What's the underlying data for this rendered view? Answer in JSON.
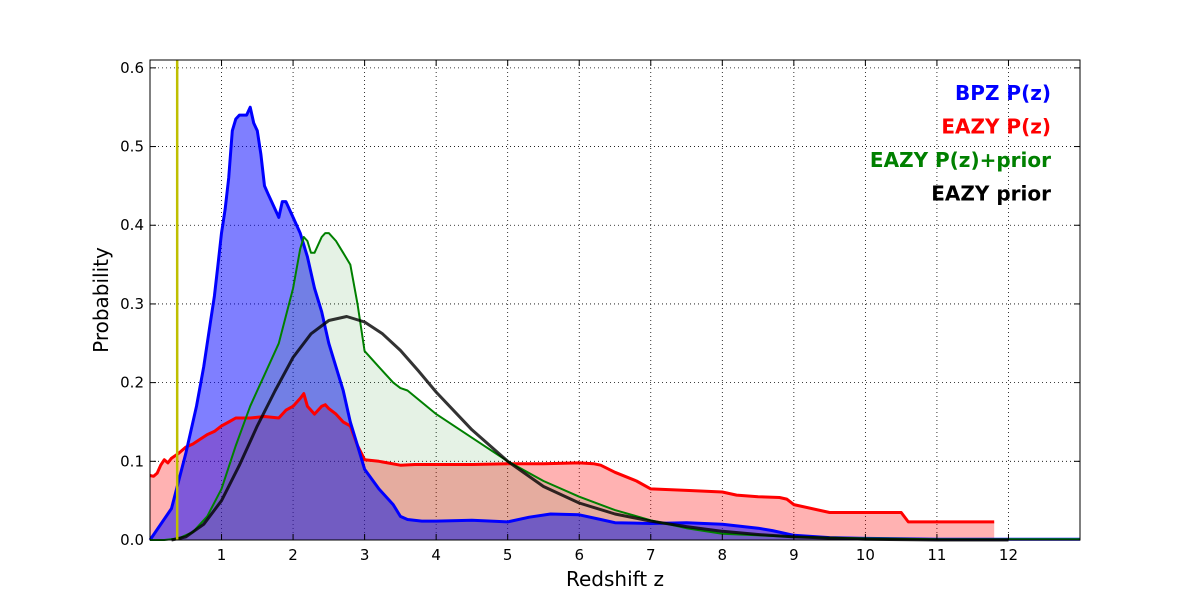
{
  "chart_data": {
    "type": "area",
    "xlabel": "Redshift z",
    "ylabel": "Probability",
    "xlim": [
      0,
      13
    ],
    "ylim": [
      0,
      0.61
    ],
    "xticks": [
      1,
      2,
      3,
      4,
      5,
      6,
      7,
      8,
      9,
      10,
      11,
      12
    ],
    "yticks": [
      0.0,
      0.1,
      0.2,
      0.3,
      0.4,
      0.5,
      0.6
    ],
    "ytick_labels": [
      "0.0",
      "0.1",
      "0.2",
      "0.3",
      "0.4",
      "0.5",
      "0.6"
    ],
    "grid": true,
    "legend_position": "top-right",
    "vertical_line": {
      "x": 0.38,
      "color": "#bfbf00"
    },
    "series": [
      {
        "name": "BPZ P(z)",
        "color": "#0000ff",
        "fill": "#0000ff",
        "fill_opacity": 0.5,
        "x": [
          0,
          0.3,
          0.5,
          0.65,
          0.75,
          0.85,
          0.9,
          0.95,
          1.0,
          1.05,
          1.1,
          1.15,
          1.2,
          1.25,
          1.3,
          1.35,
          1.4,
          1.45,
          1.5,
          1.55,
          1.6,
          1.65,
          1.7,
          1.75,
          1.8,
          1.85,
          1.9,
          2.0,
          2.1,
          2.2,
          2.3,
          2.4,
          2.5,
          2.6,
          2.7,
          2.8,
          2.9,
          3.0,
          3.2,
          3.4,
          3.5,
          3.6,
          3.8,
          4.0,
          4.5,
          5.0,
          5.3,
          5.6,
          6.0,
          6.3,
          6.5,
          7.0,
          7.5,
          8.0,
          8.5,
          8.7,
          9.0,
          9.5,
          10.0,
          11.0,
          12.0,
          13.0
        ],
        "y": [
          0,
          0.04,
          0.11,
          0.17,
          0.22,
          0.28,
          0.31,
          0.35,
          0.39,
          0.42,
          0.46,
          0.52,
          0.535,
          0.54,
          0.54,
          0.54,
          0.55,
          0.53,
          0.52,
          0.49,
          0.45,
          0.44,
          0.43,
          0.42,
          0.41,
          0.43,
          0.43,
          0.41,
          0.39,
          0.36,
          0.32,
          0.29,
          0.25,
          0.22,
          0.19,
          0.15,
          0.12,
          0.09,
          0.065,
          0.045,
          0.03,
          0.026,
          0.024,
          0.024,
          0.025,
          0.023,
          0.029,
          0.033,
          0.032,
          0.026,
          0.022,
          0.021,
          0.022,
          0.02,
          0.015,
          0.012,
          0.006,
          0.003,
          0.002,
          0.001,
          0.001,
          0.001
        ]
      },
      {
        "name": "EAZY P(z)",
        "color": "#ff0000",
        "fill": "#ff0000",
        "fill_opacity": 0.3,
        "x": [
          0,
          0.05,
          0.1,
          0.15,
          0.2,
          0.25,
          0.3,
          0.4,
          0.5,
          0.6,
          0.7,
          0.8,
          0.9,
          1.0,
          1.1,
          1.2,
          1.4,
          1.6,
          1.8,
          1.9,
          2.0,
          2.1,
          2.15,
          2.2,
          2.3,
          2.4,
          2.45,
          2.5,
          2.6,
          2.7,
          2.8,
          2.9,
          3.0,
          3.2,
          3.5,
          3.7,
          4.0,
          4.5,
          5.0,
          5.5,
          6.0,
          6.2,
          6.3,
          6.5,
          6.8,
          7.0,
          7.5,
          8.0,
          8.2,
          8.5,
          8.8,
          8.9,
          9.0,
          9.5,
          10.0,
          10.3,
          10.5,
          10.6,
          11.0,
          11.5,
          11.8
        ],
        "y": [
          0.082,
          0.081,
          0.085,
          0.095,
          0.102,
          0.098,
          0.104,
          0.11,
          0.118,
          0.122,
          0.128,
          0.134,
          0.138,
          0.145,
          0.15,
          0.155,
          0.155,
          0.157,
          0.155,
          0.165,
          0.17,
          0.18,
          0.186,
          0.17,
          0.16,
          0.17,
          0.172,
          0.167,
          0.16,
          0.15,
          0.145,
          0.12,
          0.102,
          0.1,
          0.095,
          0.096,
          0.096,
          0.096,
          0.097,
          0.097,
          0.098,
          0.097,
          0.095,
          0.086,
          0.075,
          0.065,
          0.063,
          0.061,
          0.057,
          0.055,
          0.054,
          0.052,
          0.045,
          0.035,
          0.035,
          0.035,
          0.035,
          0.023,
          0.023,
          0.023,
          0.023
        ]
      },
      {
        "name": "EAZY P(z)+prior",
        "color": "#008000",
        "fill": "#008000",
        "fill_opacity": 0.1,
        "x": [
          0,
          0.2,
          0.4,
          0.6,
          0.8,
          1.0,
          1.2,
          1.4,
          1.5,
          1.6,
          1.8,
          2.0,
          2.1,
          2.15,
          2.2,
          2.25,
          2.3,
          2.4,
          2.45,
          2.5,
          2.6,
          2.7,
          2.8,
          2.9,
          3.0,
          3.2,
          3.4,
          3.5,
          3.6,
          4.0,
          4.5,
          5.0,
          5.5,
          6.0,
          6.5,
          7.0,
          7.5,
          8.0,
          9.0,
          10.0,
          11.0,
          13.0
        ],
        "y": [
          0,
          0,
          0.002,
          0.01,
          0.03,
          0.065,
          0.12,
          0.17,
          0.19,
          0.21,
          0.25,
          0.32,
          0.37,
          0.385,
          0.38,
          0.365,
          0.365,
          0.385,
          0.39,
          0.39,
          0.38,
          0.365,
          0.35,
          0.3,
          0.24,
          0.22,
          0.2,
          0.193,
          0.19,
          0.16,
          0.13,
          0.1,
          0.075,
          0.055,
          0.038,
          0.025,
          0.015,
          0.008,
          0.004,
          0.002,
          0.001,
          0.001
        ]
      },
      {
        "name": "EAZY prior",
        "color": "#000000",
        "fill": "none",
        "fill_opacity": 0,
        "x": [
          0.3,
          0.5,
          0.75,
          1.0,
          1.25,
          1.5,
          1.75,
          2.0,
          2.25,
          2.5,
          2.75,
          3.0,
          3.25,
          3.5,
          3.75,
          4.0,
          4.5,
          5.0,
          5.5,
          6.0,
          6.5,
          7.0,
          7.5,
          8.0,
          8.5,
          9.0,
          10.0,
          11.0,
          12.0
        ],
        "y": [
          0.0,
          0.004,
          0.02,
          0.05,
          0.095,
          0.145,
          0.19,
          0.232,
          0.262,
          0.279,
          0.284,
          0.277,
          0.262,
          0.241,
          0.215,
          0.188,
          0.14,
          0.1,
          0.068,
          0.047,
          0.033,
          0.024,
          0.017,
          0.011,
          0.007,
          0.004,
          0.001,
          0.0,
          0.0
        ]
      }
    ]
  }
}
